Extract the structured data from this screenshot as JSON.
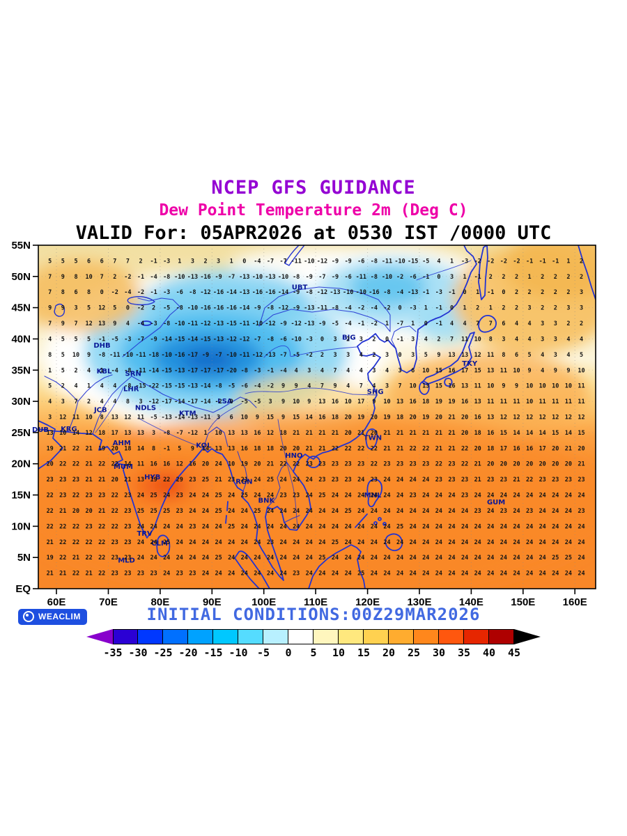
{
  "header": {
    "title": "NCEP GFS GUIDANCE",
    "subtitle": "Dew Point Temperature 2m (Deg C)",
    "valid_line": "VALID For: 05APR2026 at 0530 IST /0000 UTC"
  },
  "footer": {
    "initial_conditions": "INITIAL CONDITIONS:00Z29MAR2026",
    "brand": "WEACLIM"
  },
  "colors": {
    "title": "#9400D3",
    "subtitle": "#EE00A8",
    "initial": "#4169E1",
    "coast": "#2233D2",
    "station": "#0A1796",
    "number": "#141414",
    "badge": "#1E4FE0"
  },
  "chart_data": {
    "type": "heatmap",
    "title": "NCEP GFS GUIDANCE",
    "subtitle": "Dew Point Temperature 2m (Deg C)",
    "valid": "VALID For: 05APR2026 at 0530 IST /0000 UTC",
    "init": "INITIAL CONDITIONS:00Z29MAR2026",
    "units": "Deg C",
    "lat_labels": [
      "55N",
      "50N",
      "45N",
      "40N",
      "35N",
      "30N",
      "25N",
      "20N",
      "15N",
      "10N",
      "5N",
      "EQ"
    ],
    "lat_values": [
      55,
      50,
      45,
      40,
      35,
      30,
      25,
      20,
      15,
      10,
      5,
      0
    ],
    "lon_labels": [
      "60E",
      "70E",
      "80E",
      "90E",
      "100E",
      "110E",
      "120E",
      "130E",
      "140E",
      "150E",
      "160E"
    ],
    "lon_values": [
      60,
      70,
      80,
      90,
      100,
      110,
      120,
      130,
      140,
      150,
      160
    ],
    "grid": {
      "lat_start": 52.5,
      "lat_step": 2.5,
      "lon_start": 58.75,
      "lon_step": 2.5,
      "rows": [
        "5 5 5 6 6 7 7 2 -1 -3 1 3 2 3 1 0 -4 -7 -7 -11 -10 -12 -9 -9 -6 -8 -11 -10 -15 -5 4 1 -3 -2 -2 -2 -2 -1 -1 -1 1 2",
        "7 9 8 10 7 2 -2 -1 -4 -8 -10 -13 -16 -9 -7 -13 -10 -13 -10 -8 -9 -7 -9 -6 -11 -8 -10 -2 -6 -1 0 3 1 -1 2 2 2 1 2 2 2 2",
        "7 8 6 8 0 -2 -4 -2 -1 -3 -6 -8 -12 -16 -14 -13 -16 -16 -14 -9 -8 -12 -13 -10 -10 -16 -8 -4 -13 -1 -3 -1 0 1 -1 0 2 2 2 2 2 3",
        "9 9 3 5 12 5 0 -2 2 -5 -8 -10 -16 -16 -16 -14 -9 -8 -12 -9 -13 -11 -8 -4 -2 -4 -2 0 -3 1 -1 0 1 2 1 2 2 3 2 2 3 3",
        "7 9 7 12 13 9 4 -4 -3 -8 -10 -11 -12 -13 -15 -11 -10 -12 -9 -12 -13 -9 -5 -4 -1 -2 1 -7 1 0 -1 4 4 7 7 6 4 4 3 3 2 2",
        "4 5 5 5 -1 -5 -3 -7 -9 -14 -15 -14 -15 -13 -12 -12 -7 -8 -6 -10 -3 0 3 2 3 2 0 -1 3 4 2 7 11 10 8 3 4 4 3 3 4 4",
        "8 5 10 9 -8 -11 -10 -11 -18 -10 -16 -17 -9 -7 -10 -11 -12 -13 -7 -5 -2 2 3 3 4 2 3 0 3 5 9 13 13 12 11 8 6 5 4 3 4 5",
        "1 5 2 4 1 -4 -8 -11 -14 -15 -13 -17 -17 -17 -20 -8 -3 -1 -4 4 3 4 7 4 4 3 4 3 6 10 15 16 17 15 13 11 10 9 4 9 9 10",
        "5 2 4 1 4 4 -8 -15 -22 -15 -15 -13 -14 -8 -5 -6 -4 -2 9 9 4 7 9 4 7 4 3 7 10 13 15 16 13 11 10 9 9 10 10 10 10 11",
        "4 3 7 2 4 4 8 3 -12 -17 -14 -17 -14 -2 0 -5 -5 3 9 10 9 13 16 10 17 9 10 13 16 18 19 19 16 13 11 11 11 10 11 11 11 11",
        "3 12 11 10 8 13 12 11 -5 -13 -14 -13 -11 3 6 10 9 15 9 15 14 16 18 20 19 20 19 18 20 19 20 21 20 16 13 12 12 12 12 12 12 12",
        "13 10 14 12 18 17 13 13 3 -8 -7 -12 1 10 13 13 16 12 18 21 21 21 21 20 21 20 21 21 21 21 21 21 20 18 16 15 14 14 14 15 14 15",
        "19 21 22 21 19 20 18 14 8 -1 5 9 14 13 13 16 18 18 20 20 21 21 22 22 22 22 21 21 22 22 21 21 22 20 18 17 16 16 17 20 21 20",
        "20 22 22 21 22 22 14 11 16 16 12 16 20 24 10 19 20 21 22 22 23 23 23 23 23 22 23 23 23 23 22 23 22 21 20 20 20 20 20 20 20 21",
        "23 23 23 21 21 20 21 13 19 22 29 23 25 21 23 21 24 25 24 24 24 23 23 23 24 23 24 24 24 24 23 23 23 21 23 23 21 22 23 23 23 23",
        "22 23 22 23 23 22 23 24 25 24 23 24 24 25 24 25 24 24 23 23 24 25 24 24 24 24 24 24 23 24 24 24 23 24 24 24 24 24 24 24 24 24",
        "22 21 20 20 21 22 23 25 25 25 23 24 24 25 24 24 25 24 24 24 24 24 24 25 24 24 24 24 24 24 24 24 24 23 24 23 24 23 24 24 24 23",
        "22 22 22 23 22 22 23 24 24 24 24 23 24 24 25 24 24 24 24 24 24 24 24 24 24 24 24 25 24 24 24 24 24 24 24 24 24 24 24 24 24 24",
        "21 22 22 22 22 23 23 24 24 25 24 24 24 24 24 24 24 23 24 24 24 24 25 24 24 24 24 24 24 24 24 24 24 24 24 24 24 24 24 24 24 24",
        "19 22 21 22 22 23 23 24 24 24 24 24 24 25 24 24 24 24 24 24 24 25 24 24 24 24 24 24 24 24 24 24 24 24 24 24 24 24 24 25 25 24",
        "21 21 22 21 22 23 23 23 23 24 23 23 24 24 24 24 24 24 24 23 24 24 24 24 25 24 24 24 24 24 24 24 24 24 24 24 24 24 24 24 24 24"
      ]
    },
    "stations": [
      {
        "id": "DHB",
        "lon": 68.8,
        "lat": 38.6
      },
      {
        "id": "KBL",
        "lon": 69.2,
        "lat": 34.5
      },
      {
        "id": "SRN",
        "lon": 74.8,
        "lat": 34.1
      },
      {
        "id": "LHR",
        "lon": 74.4,
        "lat": 31.6
      },
      {
        "id": "JCB",
        "lon": 68.5,
        "lat": 28.3
      },
      {
        "id": "NDLS",
        "lon": 77.2,
        "lat": 28.6
      },
      {
        "id": "KTM",
        "lon": 85.3,
        "lat": 27.7
      },
      {
        "id": "DUB",
        "lon": 56.9,
        "lat": 25.1
      },
      {
        "id": "KRG",
        "lon": 62.4,
        "lat": 25.2
      },
      {
        "id": "AHM",
        "lon": 72.6,
        "lat": 23.0
      },
      {
        "id": "KOL",
        "lon": 88.4,
        "lat": 22.6
      },
      {
        "id": "MUM",
        "lon": 72.9,
        "lat": 19.2
      },
      {
        "id": "HYB",
        "lon": 78.5,
        "lat": 17.5
      },
      {
        "id": "RGN",
        "lon": 96.2,
        "lat": 16.8
      },
      {
        "id": "HNO",
        "lon": 105.8,
        "lat": 21.0
      },
      {
        "id": "BNK",
        "lon": 100.5,
        "lat": 13.8
      },
      {
        "id": "MNL",
        "lon": 121.0,
        "lat": 14.6
      },
      {
        "id": "GUM",
        "lon": 144.8,
        "lat": 13.5
      },
      {
        "id": "TRV",
        "lon": 77.0,
        "lat": 8.5
      },
      {
        "id": "CLM",
        "lon": 79.9,
        "lat": 6.9
      },
      {
        "id": "MLD",
        "lon": 73.5,
        "lat": 4.2
      },
      {
        "id": "LSA",
        "lon": 92.5,
        "lat": 29.7
      },
      {
        "id": "SHG",
        "lon": 121.5,
        "lat": 31.2
      },
      {
        "id": "BJG",
        "lon": 116.4,
        "lat": 39.9
      },
      {
        "id": "UBT",
        "lon": 106.9,
        "lat": 47.9
      },
      {
        "id": "TKY",
        "lon": 139.7,
        "lat": 35.7
      },
      {
        "id": "TWN",
        "lon": 121.0,
        "lat": 23.8
      }
    ],
    "colorbar": {
      "levels": [
        -35,
        -30,
        -25,
        -20,
        -15,
        -10,
        -5,
        0,
        5,
        10,
        15,
        20,
        25,
        30,
        35,
        40,
        45
      ],
      "cell_colors": [
        "#2B00D4",
        "#0038FF",
        "#0070FF",
        "#00A2FF",
        "#00C8FF",
        "#55DCFF",
        "#B8F0FF",
        "#FFFFFF",
        "#FFF6BE",
        "#FFE87E",
        "#FFD150",
        "#FFAC2F",
        "#FF871C",
        "#FF570E",
        "#E62600",
        "#AE0000"
      ],
      "left_arrow_color": "#8800CC",
      "right_arrow_color": "#000000"
    }
  }
}
